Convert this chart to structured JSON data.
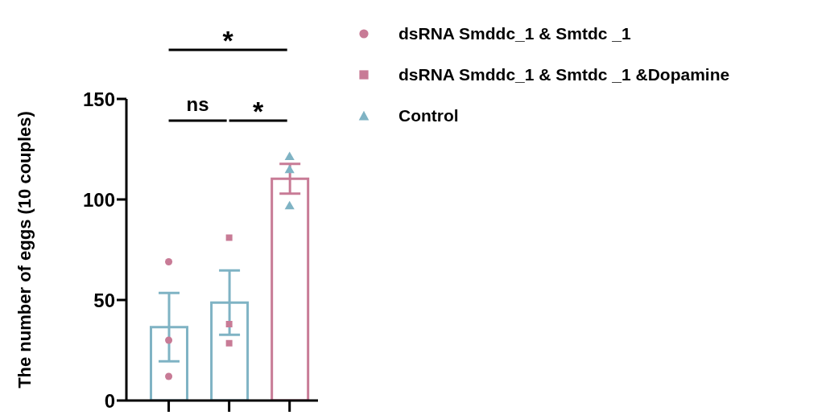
{
  "chart_data": {
    "type": "bar",
    "ylabel": "The number of eggs (10 couples)",
    "categories": [
      null,
      null,
      null
    ],
    "ylim": [
      0,
      150
    ],
    "yticks": [
      0,
      50,
      100,
      150
    ],
    "legend": "top right",
    "annotations": [
      "*",
      "ns",
      "*"
    ],
    "series": [
      {
        "colors": [
          "#7fb3c4",
          "#7fb3c4",
          "#c87b96"
        ],
        "values": [
          36.5,
          48.7,
          110.3
        ],
        "errors": [
          17,
          16,
          7.4
        ]
      },
      {
        "type": "scatter",
        "name": "dsRNA Smddc_1 & Smtdc _1",
        "color": "#c87b96",
        "marker": "circle",
        "values": [
          69,
          null,
          null
        ]
      },
      {
        "type": "scatter",
        "color": "#c87b96",
        "marker": "circle",
        "values": [
          30,
          null,
          null
        ]
      },
      {
        "type": "scatter",
        "color": "#c87b96",
        "marker": "circle",
        "values": [
          12,
          null,
          null
        ]
      },
      {
        "type": "scatter",
        "name": "dsRNA Smddc_1 & Smtdc _1 &Dopamine",
        "color": "#c87b96",
        "marker": "square",
        "values": [
          null,
          81,
          null
        ]
      },
      {
        "type": "scatter",
        "color": "#c87b96",
        "marker": "square",
        "values": [
          null,
          38,
          null
        ]
      },
      {
        "type": "scatter",
        "color": "#c87b96",
        "marker": "square",
        "values": [
          null,
          28.5,
          null
        ]
      },
      {
        "type": "scatter",
        "name": "Control",
        "color": "#7fb3c4",
        "marker": "triangle",
        "values": [
          null,
          null,
          121
        ]
      },
      {
        "type": "scatter",
        "color": "#7fb3c4",
        "marker": "triangle",
        "values": [
          null,
          null,
          114.5
        ]
      },
      {
        "type": "scatter",
        "color": "#7fb3c4",
        "marker": "triangle",
        "values": [
          null,
          null,
          96.5
        ]
      }
    ]
  }
}
